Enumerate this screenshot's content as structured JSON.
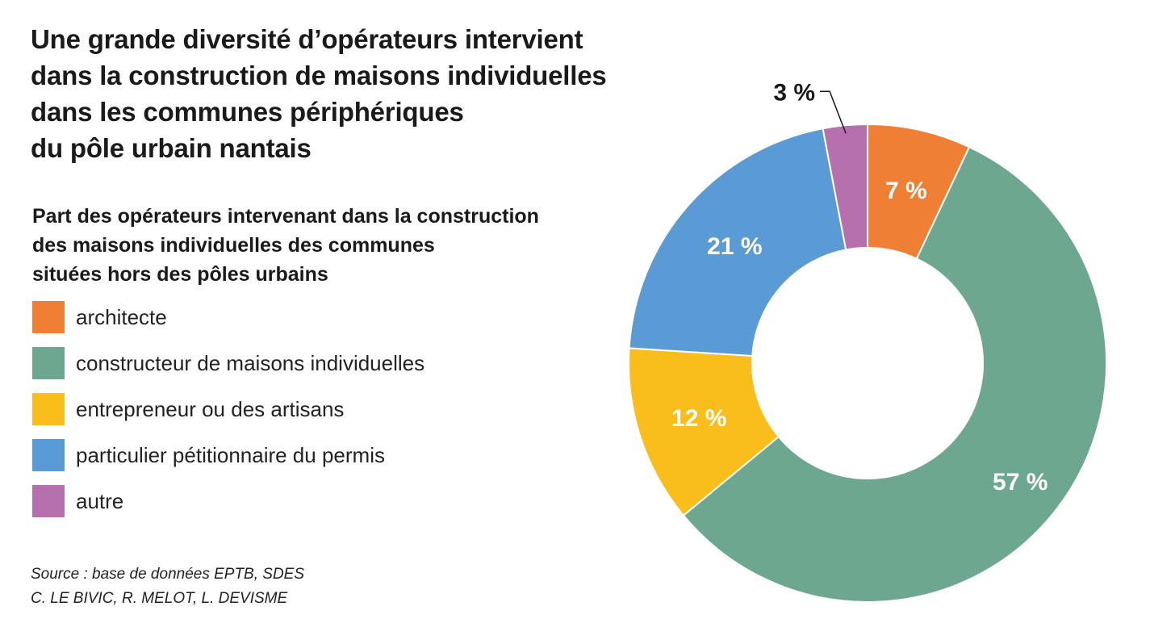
{
  "title_lines": [
    "Une grande diversité d’opérateurs intervient",
    "dans la construction de maisons individuelles",
    "dans les communes périphériques",
    "du pôle urbain nantais"
  ],
  "subtitle_lines": [
    "Part des opérateurs intervenant dans la construction",
    "des maisons individuelles des communes",
    "situées hors des pôles urbains"
  ],
  "source_lines": [
    "Source : base de données EPTB, SDES",
    "C. LE BIVIC, R. MELOT, L. DEVISME"
  ],
  "chart_data": {
    "type": "pie",
    "donut": true,
    "title": "Une grande diversité d’opérateurs intervient dans la construction de maisons individuelles dans les communes périphériques du pôle urbain nantais",
    "subtitle": "Part des opérateurs intervenant dans la construction des maisons individuelles des communes situées hors des pôles urbains",
    "legend_position": "left",
    "categories": [
      "architecte",
      "constructeur de maisons individuelles",
      "entrepreneur ou des artisans",
      "particulier pétitionnaire du permis",
      "autre"
    ],
    "values": [
      7,
      57,
      12,
      21,
      3
    ],
    "labels": [
      "7 %",
      "57 %",
      "12 %",
      "21 %",
      "3 %"
    ],
    "colors": [
      "#ef7f35",
      "#6ea790",
      "#f9bd1c",
      "#5b9bd5",
      "#b770ae"
    ],
    "unit": "%"
  }
}
